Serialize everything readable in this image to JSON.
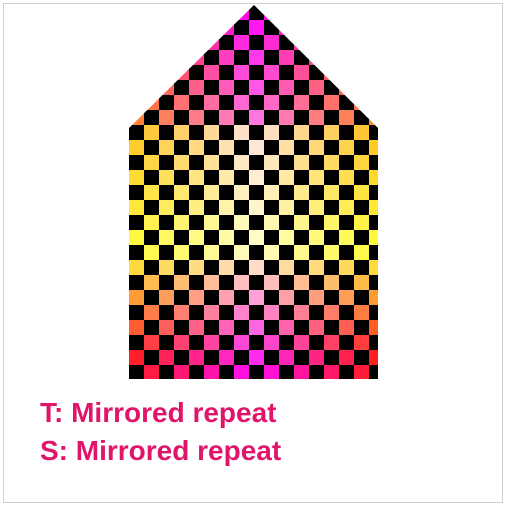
{
  "captions": {
    "t_wrap": "T: Mirrored repeat",
    "s_wrap": "S: Mirrored repeat"
  },
  "colors": {
    "caption": "#e0156a",
    "checker_dark": "#000000",
    "texture_top": "#ff00ff",
    "texture_middle": "#ffffa0",
    "texture_edges": "#ff2020"
  },
  "icons": {
    "shape": "house-pentagon-textured"
  }
}
